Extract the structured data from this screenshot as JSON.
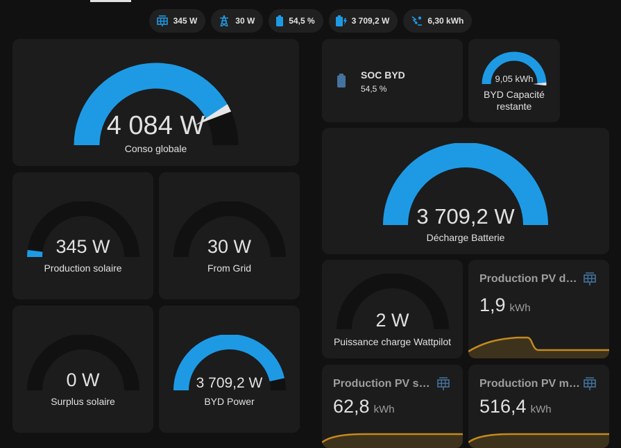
{
  "colors": {
    "accent": "#1e9ae5",
    "track": "#111111",
    "card": "#1c1c1c",
    "chip": "#202020",
    "graph": "#c48a1f"
  },
  "chips": [
    {
      "icon": "solar-panel-icon",
      "value": "345 W"
    },
    {
      "icon": "transmission-tower-icon",
      "value": "30 W"
    },
    {
      "icon": "battery-icon",
      "value": "54,5 %"
    },
    {
      "icon": "battery-charging-icon",
      "value": "3 709,2 W"
    },
    {
      "icon": "solar-power-icon",
      "value": "6,30 kWh"
    }
  ],
  "gauges": {
    "conso_globale": {
      "value": "4 084 W",
      "label": "Conso globale",
      "level": 0.85
    },
    "production_solaire": {
      "value": "345 W",
      "label": "Production solaire",
      "level": 0.04
    },
    "from_grid": {
      "value": "30 W",
      "label": "From Grid",
      "level": 0.0
    },
    "surplus_solaire": {
      "value": "0 W",
      "label": "Surplus solaire",
      "level": 0.0
    },
    "byd_power": {
      "value": "3 709,2 W",
      "label": "BYD Power",
      "level": 0.93
    },
    "byd_capacite": {
      "value": "9,05 kWh",
      "label_line1": "BYD Capacité",
      "label_line2": "restante",
      "level": 1.0
    },
    "decharge_batterie": {
      "value": "3 709,2 W",
      "label": "Décharge Batterie",
      "level": 1.0
    },
    "puissance_charge": {
      "value": "2 W",
      "label": "Puissance charge Wattpilot",
      "level": 0.0
    }
  },
  "soc_tile": {
    "name": "SOC BYD",
    "state": "54,5 %",
    "icon": "battery-icon"
  },
  "sensors": {
    "pv_jour": {
      "title": "Production PV du jour",
      "value": "1,9",
      "unit": "kWh",
      "icon": "solar-panel-icon"
    },
    "pv_semaine": {
      "title": "Production PV semaine",
      "value": "62,8",
      "unit": "kWh",
      "icon": "solar-panel-icon"
    },
    "pv_mois": {
      "title": "Production PV mois",
      "value": "516,4",
      "unit": "kWh",
      "icon": "solar-panel-icon"
    }
  }
}
